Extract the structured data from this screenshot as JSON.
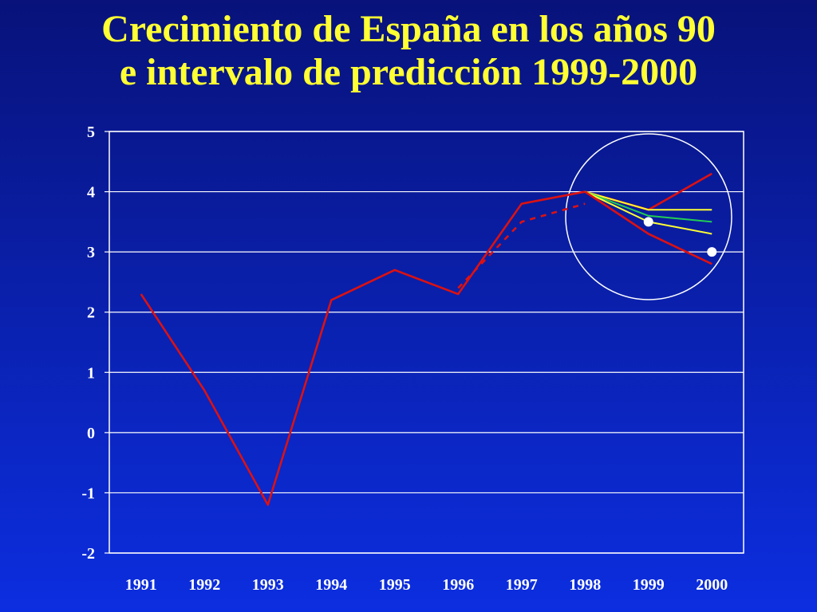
{
  "title_lines": [
    "Crecimiento de España en los años 90",
    "e intervalo de predicción 1999-2000"
  ],
  "colors": {
    "title": "#ffff33",
    "axis": "#ffffff",
    "actual": "#dd1111",
    "yellow": "#ffff33",
    "green": "#22cc55",
    "highlight_circle": "#ffffff",
    "marker": "#ffffff"
  },
  "chart_data": {
    "type": "line",
    "title": "Crecimiento de España en los años 90 e intervalo de predicción 1999-2000",
    "xlabel": "",
    "ylabel": "",
    "x": [
      "1991",
      "1992",
      "1993",
      "1994",
      "1995",
      "1996",
      "1997",
      "1998",
      "1999",
      "2000"
    ],
    "ylim": [
      -2,
      5
    ],
    "yticks": [
      "-2",
      "-1",
      "0",
      "1",
      "2",
      "3",
      "4",
      "5"
    ],
    "grid": true,
    "legend": "none",
    "series": [
      {
        "style": "solid",
        "color": "red",
        "x": [
          "1991",
          "1992",
          "1993",
          "1994",
          "1995",
          "1996",
          "1997",
          "1998"
        ],
        "values": [
          2.3,
          0.7,
          -1.2,
          2.2,
          2.7,
          2.3,
          3.8,
          4.0
        ]
      },
      {
        "style": "dashed",
        "color": "red",
        "x": [
          "1996",
          "1997",
          "1998"
        ],
        "values": [
          2.4,
          3.5,
          3.8
        ]
      },
      {
        "style": "solid",
        "color": "red",
        "x": [
          "1998",
          "1999",
          "2000"
        ],
        "values": [
          4.0,
          3.7,
          4.3
        ]
      },
      {
        "style": "solid",
        "color": "yellow",
        "x": [
          "1998",
          "1999",
          "2000"
        ],
        "values": [
          4.0,
          3.7,
          3.7
        ]
      },
      {
        "style": "solid",
        "color": "green",
        "x": [
          "1998",
          "1999",
          "2000"
        ],
        "values": [
          4.0,
          3.6,
          3.5
        ]
      },
      {
        "style": "solid",
        "color": "yellow",
        "x": [
          "1998",
          "1999",
          "2000"
        ],
        "values": [
          4.0,
          3.5,
          3.3
        ]
      },
      {
        "style": "solid",
        "color": "red",
        "x": [
          "1998",
          "1999",
          "2000"
        ],
        "values": [
          4.0,
          3.3,
          2.8
        ]
      }
    ],
    "markers": [
      {
        "x": "1999",
        "value": 3.5
      },
      {
        "x": "2000",
        "value": 3.0
      }
    ],
    "annotations": [
      "circle highlighting the 1999-2000 prediction interval"
    ]
  }
}
